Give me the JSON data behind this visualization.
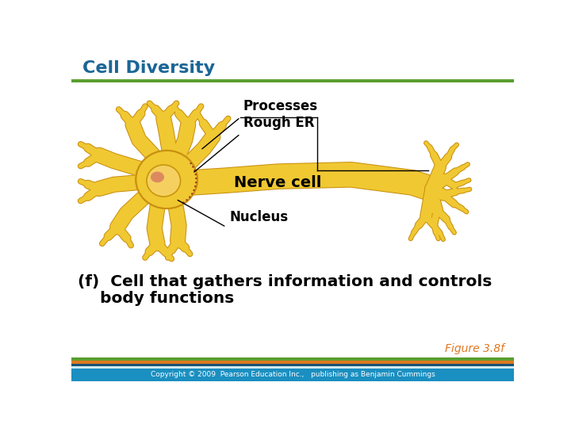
{
  "title": "Cell Diversity",
  "title_color": "#1a6696",
  "title_fontsize": 16,
  "bg_color": "#ffffff",
  "header_line_color": "#5a9e2f",
  "caption_line1": "(f)  Cell that gathers information and controls",
  "caption_line2": "body functions",
  "caption_fontsize": 14.5,
  "caption_color": "#000000",
  "figure_ref": "Figure 3.8f",
  "figure_ref_color": "#e07820",
  "figure_ref_fontsize": 10,
  "label_processes": "Processes",
  "label_rough_er": "Rough ER",
  "label_nerve_cell": "Nerve cell",
  "label_nucleus": "Nucleus",
  "label_fontsize": 12,
  "footer_colors": [
    "#5a9e2f",
    "#e07820",
    "#1a5276",
    "#d0e8f0",
    "#1a8fc1"
  ],
  "footer_heights": [
    5,
    5,
    4,
    4,
    20
  ],
  "footer_text": "Copyright © 2009  Pearson Education Inc.,   publishing as Benjamin Cummings",
  "footer_text_color": "#ffffff",
  "footer_fontsize": 6.5,
  "cell_fill": "#f0c832",
  "cell_edge": "#c89010",
  "cell_dark": "#d4a010",
  "nucleus_fill": "#f0c832",
  "nucleus_spot": "#d07850"
}
